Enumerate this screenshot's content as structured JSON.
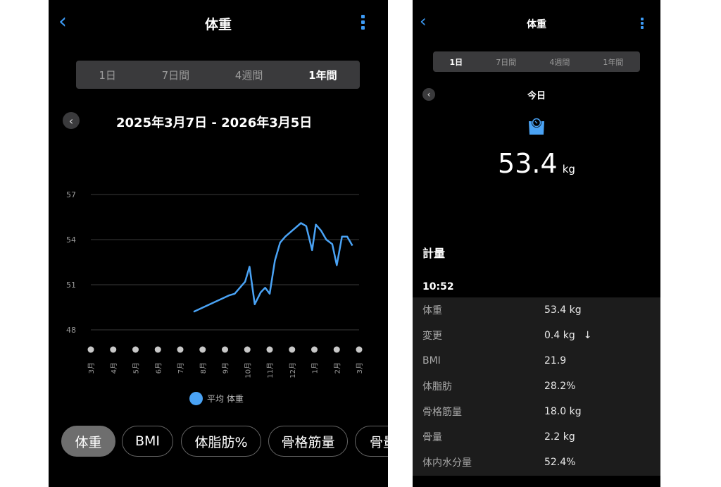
{
  "left": {
    "title": "体重",
    "tabs": [
      {
        "label": "1日",
        "selected": false
      },
      {
        "label": "7日間",
        "selected": false
      },
      {
        "label": "4週間",
        "selected": false
      },
      {
        "label": "1年間",
        "selected": true
      }
    ],
    "date_range": "2025年3月7日 - 2026年3月5日",
    "legend": "平均 体重",
    "metric_chips": [
      {
        "label": "体重",
        "selected": true
      },
      {
        "label": "BMI"
      },
      {
        "label": "体脂肪%"
      },
      {
        "label": "骨格筋量"
      },
      {
        "label": "骨量"
      }
    ]
  },
  "chart_data": {
    "type": "line",
    "y_ticks": [
      "57",
      "54",
      "51",
      "48"
    ],
    "ylim": [
      48,
      57
    ],
    "x_ticks": [
      "3月",
      "4月",
      "5月",
      "6月",
      "7月",
      "8月",
      "9月",
      "10月",
      "11月",
      "12月",
      "1月",
      "2月",
      "3月"
    ],
    "xlim": [
      "2025-03-01",
      "2026-03-01"
    ],
    "grid": true,
    "legend_position": "bottom",
    "color": "#4aa3f5",
    "series": [
      {
        "name": "平均 体重",
        "points": [
          [
            "2025-07-19",
            49.2
          ],
          [
            "2025-09-07",
            50.3
          ],
          [
            "2025-09-14",
            50.4
          ],
          [
            "2025-09-28",
            51.2
          ],
          [
            "2025-10-04",
            52.2
          ],
          [
            "2025-10-11",
            49.7
          ],
          [
            "2025-10-19",
            50.5
          ],
          [
            "2025-10-25",
            50.8
          ],
          [
            "2025-11-01",
            50.4
          ],
          [
            "2025-11-08",
            52.6
          ],
          [
            "2025-11-15",
            53.8
          ],
          [
            "2025-11-22",
            54.2
          ],
          [
            "2025-12-13",
            55.1
          ],
          [
            "2025-12-20",
            54.9
          ],
          [
            "2025-12-28",
            53.3
          ],
          [
            "2026-01-03",
            55.0
          ],
          [
            "2026-01-10",
            54.6
          ],
          [
            "2026-01-17",
            54.0
          ],
          [
            "2026-01-25",
            53.7
          ],
          [
            "2026-02-01",
            52.3
          ],
          [
            "2026-02-08",
            54.2
          ],
          [
            "2026-02-15",
            54.2
          ],
          [
            "2026-02-22",
            53.6
          ]
        ]
      }
    ]
  },
  "right": {
    "title": "体重",
    "tabs": [
      {
        "label": "1日",
        "selected": true
      },
      {
        "label": "7日間",
        "selected": false
      },
      {
        "label": "4週間",
        "selected": false
      },
      {
        "label": "1年間",
        "selected": false
      }
    ],
    "day_label": "今日",
    "weight_value": "53.4",
    "weight_unit": "kg",
    "section_title": "計量",
    "time": "10:52",
    "rows": [
      {
        "label": "体重",
        "value": "53.4 kg"
      },
      {
        "label": "変更",
        "value": "0.4 kg",
        "arrow": "↓"
      },
      {
        "label": "BMI",
        "value": "21.9"
      },
      {
        "label": "体脂肪",
        "value": "28.2%"
      },
      {
        "label": "骨格筋量",
        "value": "18.0 kg"
      },
      {
        "label": "骨量",
        "value": "2.2 kg"
      },
      {
        "label": "体内水分量",
        "value": "52.4%"
      }
    ]
  }
}
